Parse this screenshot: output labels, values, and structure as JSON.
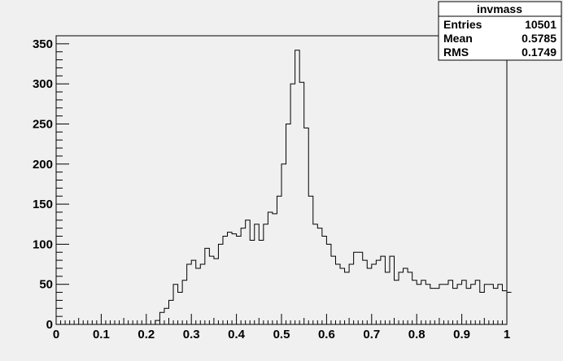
{
  "chart_data": {
    "type": "histogram",
    "title": "",
    "xlabel": "",
    "ylabel": "",
    "xlim": [
      0,
      1
    ],
    "ylim": [
      0,
      360
    ],
    "x_ticks": [
      0,
      0.1,
      0.2,
      0.3,
      0.4,
      0.5,
      0.6,
      0.7,
      0.8,
      0.9,
      1
    ],
    "x_tick_labels": [
      "0",
      "0.1",
      "0.2",
      "0.3",
      "0.4",
      "0.5",
      "0.6",
      "0.7",
      "0.8",
      "0.9",
      "1"
    ],
    "y_ticks": [
      0,
      50,
      100,
      150,
      200,
      250,
      300,
      350
    ],
    "y_tick_labels": [
      "0",
      "50",
      "100",
      "150",
      "200",
      "250",
      "300",
      "350"
    ],
    "bin_width": 0.01,
    "bin_start": 0,
    "values": [
      0,
      0,
      0,
      0,
      0,
      0,
      0,
      0,
      0,
      0,
      0,
      0,
      0,
      0,
      0,
      0,
      0,
      0,
      0,
      0,
      0,
      0,
      5,
      15,
      20,
      30,
      50,
      40,
      55,
      75,
      80,
      70,
      75,
      95,
      85,
      82,
      100,
      110,
      115,
      113,
      110,
      120,
      130,
      105,
      125,
      105,
      125,
      140,
      138,
      160,
      200,
      250,
      300,
      342,
      302,
      245,
      160,
      125,
      120,
      110,
      100,
      85,
      75,
      70,
      65,
      75,
      90,
      90,
      80,
      70,
      75,
      80,
      85,
      65,
      85,
      55,
      65,
      70,
      65,
      55,
      50,
      55,
      50,
      45,
      45,
      50,
      50,
      55,
      45,
      50,
      55,
      45,
      50,
      55,
      40,
      50,
      50,
      45,
      50,
      42,
      40
    ],
    "stats_box": {
      "title": "invmass",
      "rows": [
        {
          "label": "Entries",
          "value": "10501"
        },
        {
          "label": "Mean",
          "value": "0.5785"
        },
        {
          "label": "RMS",
          "value": "0.1749"
        }
      ]
    },
    "colors": {
      "frame_bg": "#f0f0f0",
      "plot_bg": "#f0f0f0",
      "line": "#000000"
    }
  }
}
